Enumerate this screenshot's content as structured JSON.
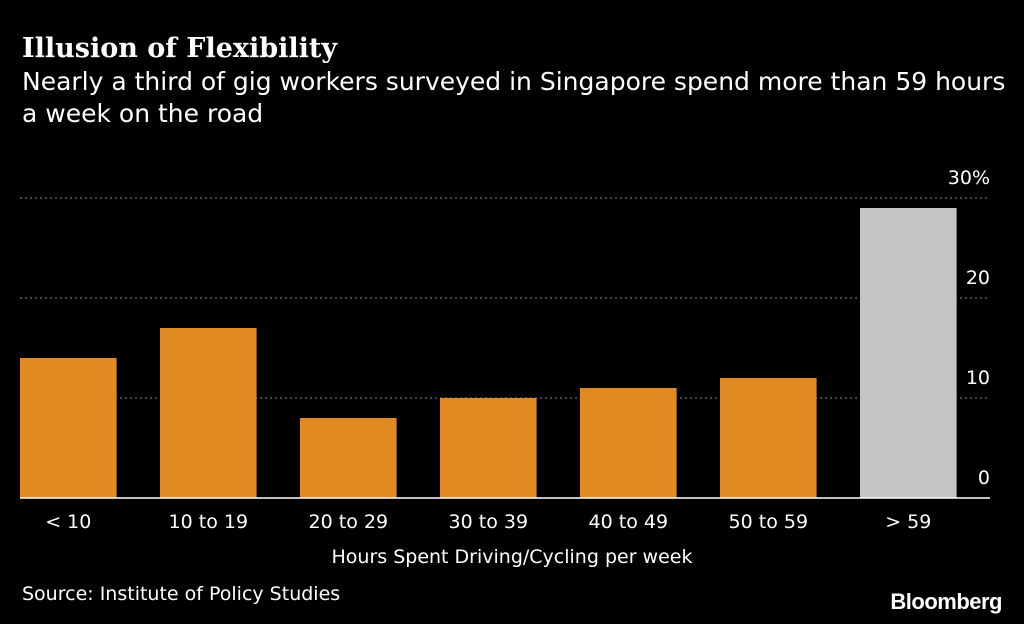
{
  "chart_data": {
    "type": "bar",
    "title": "Illusion of Flexibility",
    "subtitle": "Nearly a third of gig workers surveyed in Singapore spend more than 59 hours a week on the road",
    "categories": [
      "< 10",
      "10 to 19",
      "20 to 29",
      "30 to 39",
      "40 to 49",
      "50 to 59",
      "> 59"
    ],
    "values": [
      14,
      17,
      8,
      10,
      11,
      12,
      29
    ],
    "highlight_index": 6,
    "xlabel": "Hours Spent Driving/Cycling per week",
    "ylabel": "",
    "ylim": [
      0,
      30
    ],
    "yticks": [
      0,
      10,
      20,
      30
    ],
    "ytick_labels": [
      "0",
      "10",
      "20",
      "30%"
    ],
    "colors": {
      "bar": "#e08a21",
      "highlight": "#c4c4c4",
      "grid": "#8a8a8a",
      "background": "#000000"
    }
  },
  "source": "Source: Institute of Policy Studies",
  "brand": "Bloomberg"
}
